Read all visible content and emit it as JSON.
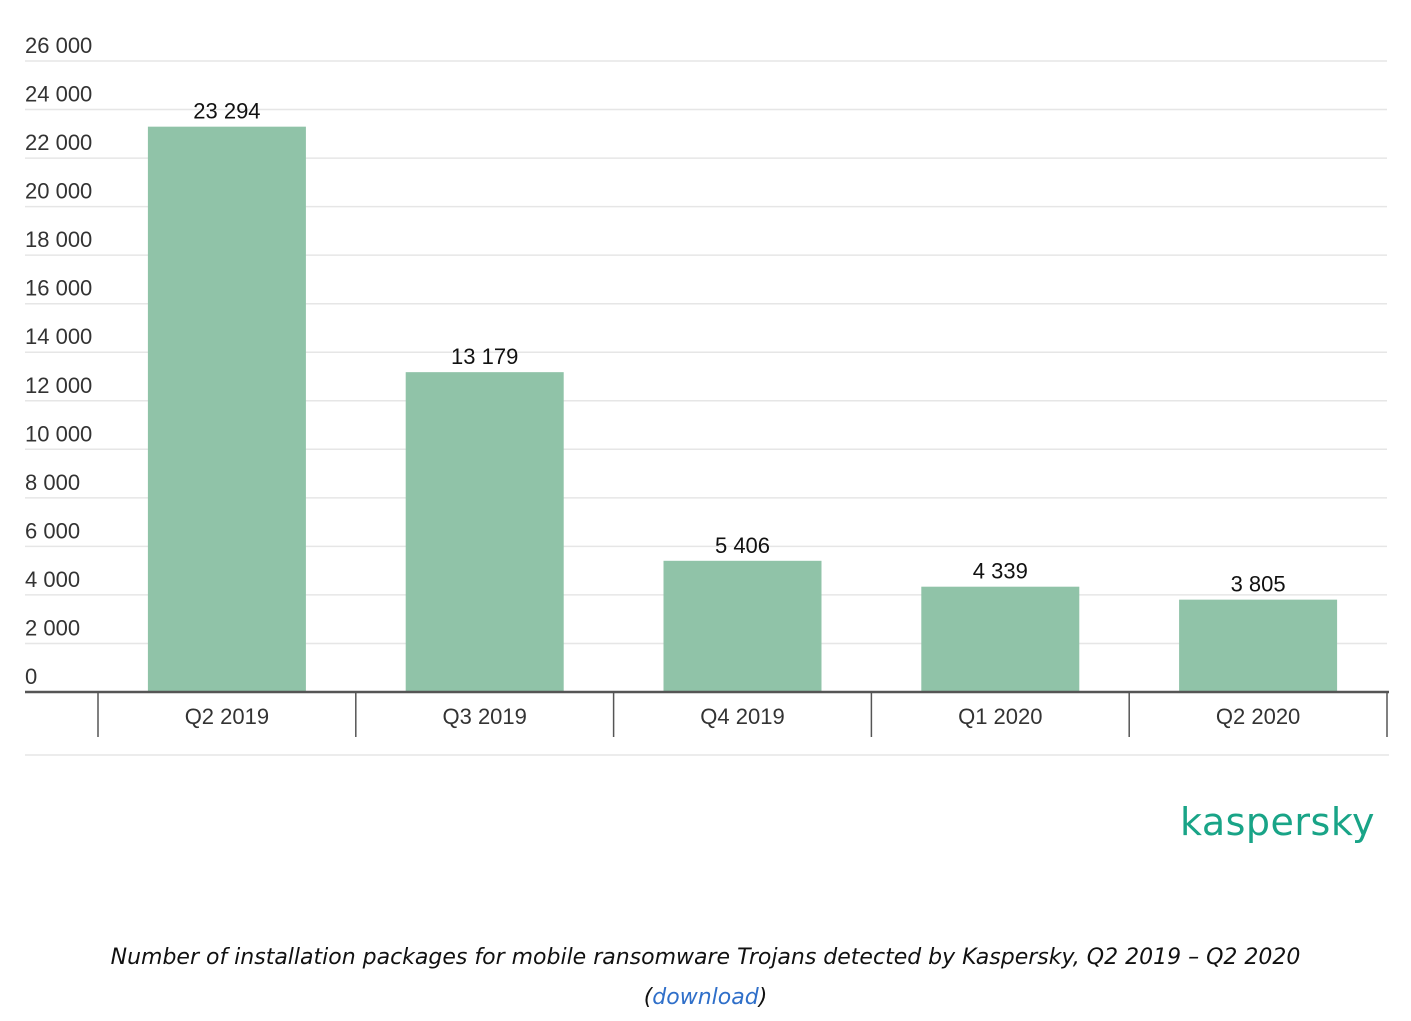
{
  "chart_data": {
    "type": "bar",
    "categories": [
      "Q2 2019",
      "Q3 2019",
      "Q4 2019",
      "Q1 2020",
      "Q2 2020"
    ],
    "values": [
      23294,
      13179,
      5406,
      4339,
      3805
    ],
    "value_labels": [
      "23 294",
      "13 179",
      "5 406",
      "4 339",
      "3 805"
    ],
    "yticks": [
      0,
      2000,
      4000,
      6000,
      8000,
      10000,
      12000,
      14000,
      16000,
      18000,
      20000,
      22000,
      24000,
      26000
    ],
    "ytick_labels": [
      "0",
      "2 000",
      "4 000",
      "6 000",
      "8 000",
      "10 000",
      "12 000",
      "14 000",
      "16 000",
      "18 000",
      "20 000",
      "22 000",
      "24 000",
      "26 000"
    ],
    "ylim": [
      0,
      26000
    ],
    "grid": true,
    "bar_color": "#90c3a8",
    "title": "",
    "xlabel": "",
    "ylabel": ""
  },
  "brand": {
    "logo_text": "kaspersky",
    "color": "#19a487"
  },
  "caption": {
    "text": "Number of installation packages for mobile ransomware Trojans detected by Kaspersky, Q2 2019 – Q2 2020",
    "open_paren": "(",
    "link_text": "download",
    "close_paren": ")",
    "link_color": "#2f6fc9"
  }
}
